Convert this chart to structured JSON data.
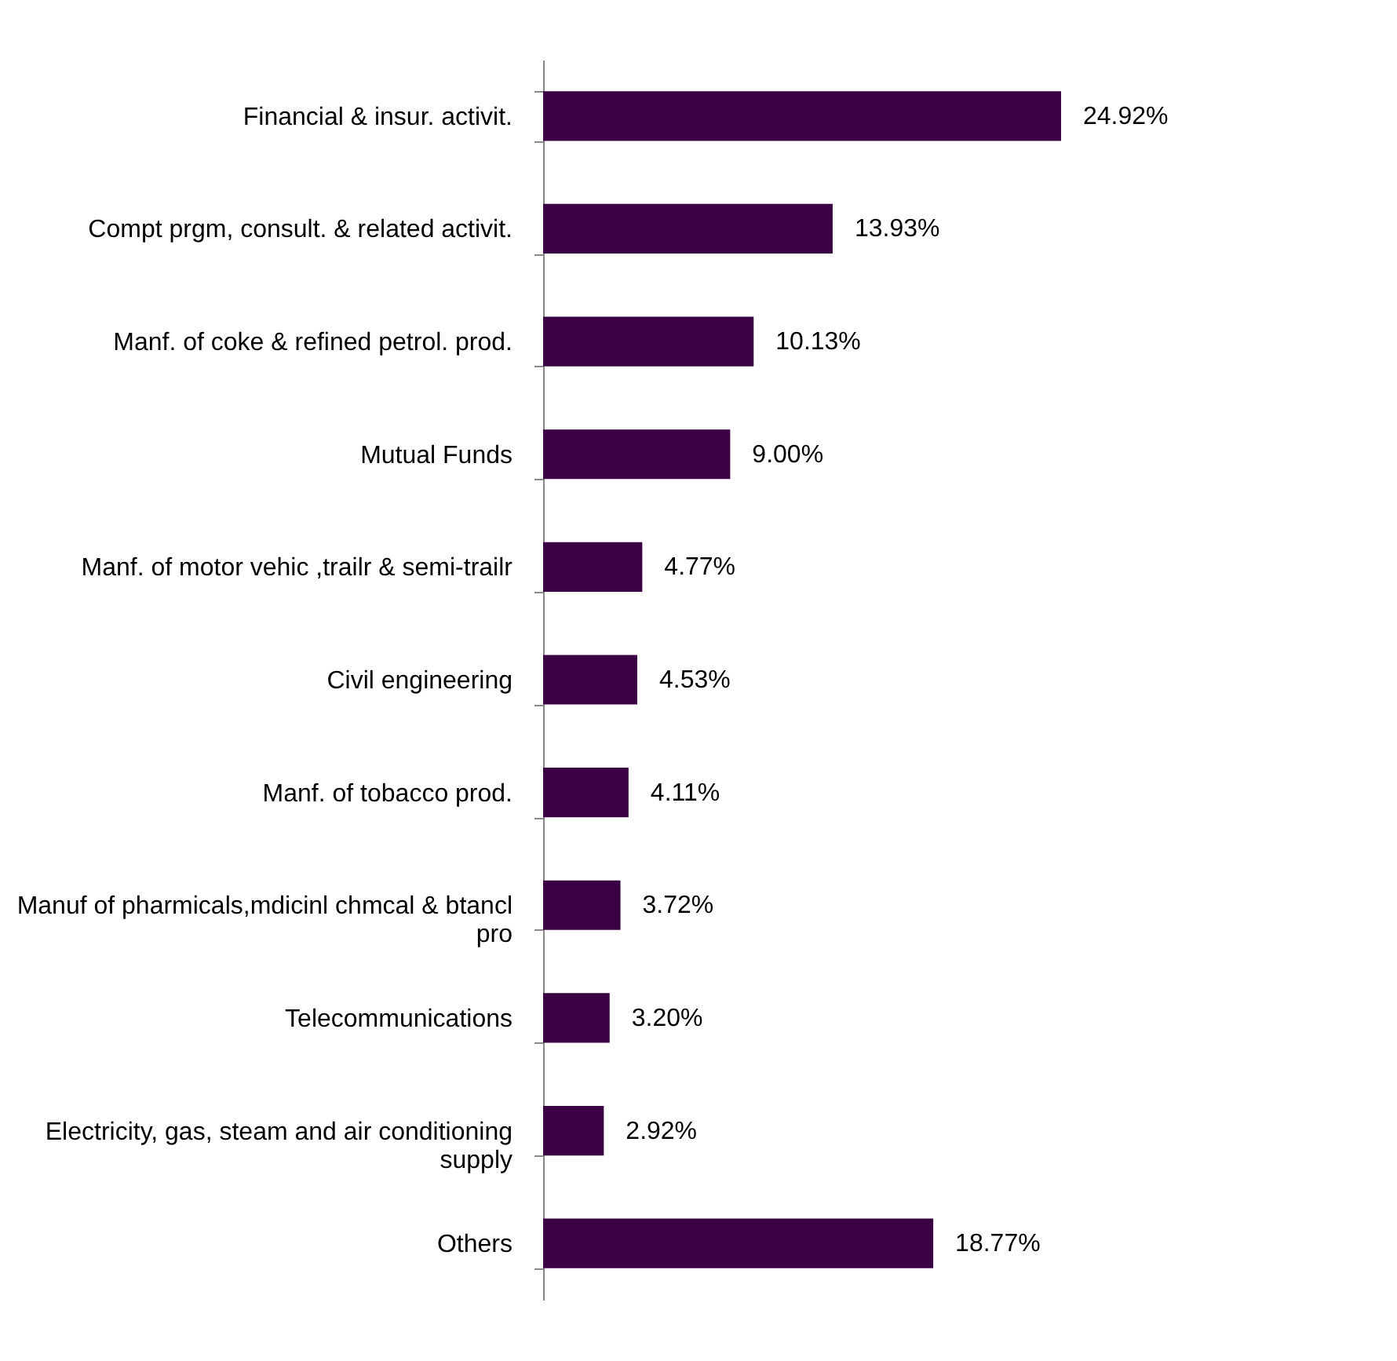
{
  "chart_data": {
    "type": "bar",
    "orientation": "horizontal",
    "categories": [
      "Financial & insur. activit.",
      "Compt prgm, consult. & related activit.",
      "Manf. of coke & refined petrol. prod.",
      "Mutual Funds",
      "Manf. of motor vehic ,trailr & semi-trailr",
      "Civil engineering",
      "Manf. of tobacco prod.",
      "Manuf of pharmicals,mdicinl chmcal & btancl pro",
      "Telecommunications",
      "Electricity, gas, steam and air conditioning supply",
      "Others"
    ],
    "values": [
      24.92,
      13.93,
      10.13,
      9.0,
      4.77,
      4.53,
      4.11,
      3.72,
      3.2,
      2.92,
      18.77
    ],
    "value_labels": [
      "24.92%",
      "13.93%",
      "10.13%",
      "9.00%",
      "4.77%",
      "4.53%",
      "4.11%",
      "3.72%",
      "3.20%",
      "2.92%",
      "18.77%"
    ],
    "color": "#3b0043"
  }
}
